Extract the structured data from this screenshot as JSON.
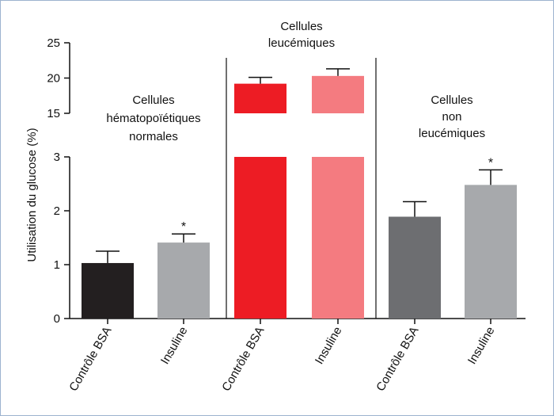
{
  "chart_data": {
    "type": "bar",
    "ylabel": "Utilisation du glucose (%)",
    "y_axis_break": {
      "lower": [
        0,
        3
      ],
      "upper": [
        15,
        25
      ]
    },
    "yticks_lower": [
      0,
      1,
      2,
      3
    ],
    "yticks_upper": [
      15,
      20,
      25
    ],
    "groups": [
      {
        "label": "Cellules hématopoïétiques normales",
        "label_lines": [
          "Cellules",
          "hématopoïétiques",
          "normales"
        ],
        "bars": [
          {
            "category": "Contrôle BSA",
            "value": 1.03,
            "error": 0.22,
            "color": "#231f20",
            "significant": false
          },
          {
            "category": "Insuline",
            "value": 1.41,
            "error": 0.16,
            "color": "#a7a9ac",
            "significant": true
          }
        ]
      },
      {
        "label": "Cellules leucémiques",
        "label_lines": [
          "Cellules",
          "leucémiques"
        ],
        "bars": [
          {
            "category": "Contrôle BSA",
            "value": 19.2,
            "error": 0.9,
            "color": "#ed1c24",
            "significant": false
          },
          {
            "category": "Insuline",
            "value": 20.3,
            "error": 1.0,
            "color": "#f47b80",
            "significant": false
          }
        ]
      },
      {
        "label": "Cellules non leucémiques",
        "label_lines": [
          "Cellules",
          "non",
          "leucémiques"
        ],
        "bars": [
          {
            "category": "Contrôle BSA",
            "value": 1.89,
            "error": 0.28,
            "color": "#6d6e71",
            "significant": false
          },
          {
            "category": "Insuline",
            "value": 2.48,
            "error": 0.28,
            "color": "#a7a9ac",
            "significant": true
          }
        ]
      }
    ],
    "significance_marker": "*"
  }
}
